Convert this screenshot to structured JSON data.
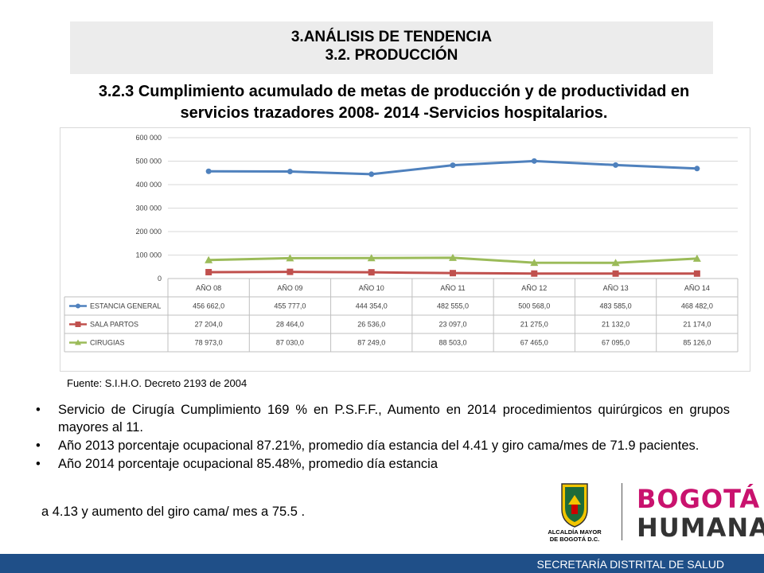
{
  "header": {
    "line1": "3.ANÁLISIS DE TENDENCIA",
    "line2": "3.2. PRODUCCIÓN"
  },
  "subtitle": {
    "line1": "3.2.3 Cumplimiento acumulado de metas de producción y de productividad en",
    "line2": "servicios trazadores 2008- 2014 -Servicios hospitalarios."
  },
  "chart_data": {
    "type": "line",
    "categories": [
      "AÑO 08",
      "AÑO 09",
      "AÑO 10",
      "AÑO 11",
      "AÑO 12",
      "AÑO 13",
      "AÑO 14"
    ],
    "ylim": [
      0,
      600000
    ],
    "yticks": [
      0,
      100000,
      200000,
      300000,
      400000,
      500000,
      600000
    ],
    "ytick_labels": [
      "0",
      "100 000",
      "200 000",
      "300 000",
      "400 000",
      "500 000",
      "600 000"
    ],
    "grid": true,
    "legend": "data-table",
    "series": [
      {
        "name": "ESTANCIA GENERAL",
        "color": "#4f81bd",
        "marker": "circle",
        "values": [
          456662,
          455777,
          444354,
          482555,
          500568,
          483585,
          468482
        ],
        "labels": [
          "456 662,0",
          "455 777,0",
          "444 354,0",
          "482 555,0",
          "500 568,0",
          "483 585,0",
          "468 482,0"
        ]
      },
      {
        "name": "SALA PARTOS",
        "color": "#c0504d",
        "marker": "square",
        "values": [
          27204,
          28464,
          26536,
          23097,
          21275,
          21132,
          21174
        ],
        "labels": [
          "27 204,0",
          "28 464,0",
          "26 536,0",
          "23 097,0",
          "21 275,0",
          "21 132,0",
          "21 174,0"
        ]
      },
      {
        "name": "CIRUGIAS",
        "color": "#9bbb59",
        "marker": "triangle",
        "values": [
          78973,
          87030,
          87249,
          88503,
          67465,
          67095,
          85126
        ],
        "labels": [
          "78 973,0",
          "87 030,0",
          "87 249,0",
          "88 503,0",
          "67 465,0",
          "67 095,0",
          "85 126,0"
        ]
      }
    ]
  },
  "source": "Fuente: S.I.H.O. Decreto 2193 de 2004",
  "bullets": [
    "Servicio de Cirugía Cumplimiento 169 % en  P.S.F.F., Aumento en 2014 procedimientos quirúrgicos en grupos mayores al 11.",
    "Año 2013 porcentaje ocupacional 87.21%, promedio día estancia del 4.41 y giro cama/mes de 71.9 pacientes.",
    "Año 2014 porcentaje ocupacional 85.48%, promedio día estancia"
  ],
  "bullet_symbol": "•",
  "continuation": "a 4.13 y aumento del giro cama/ mes a 75.5 .",
  "logos": {
    "alcaldia_line1": "ALCALDÍA MAYOR",
    "alcaldia_line2": "DE BOGOTÁ D.C.",
    "bogota_line1": "BOGOTÁ",
    "bogota_line2": "HUMANA"
  },
  "footer": "SECRETARÍA DISTRITAL DE SALUD"
}
